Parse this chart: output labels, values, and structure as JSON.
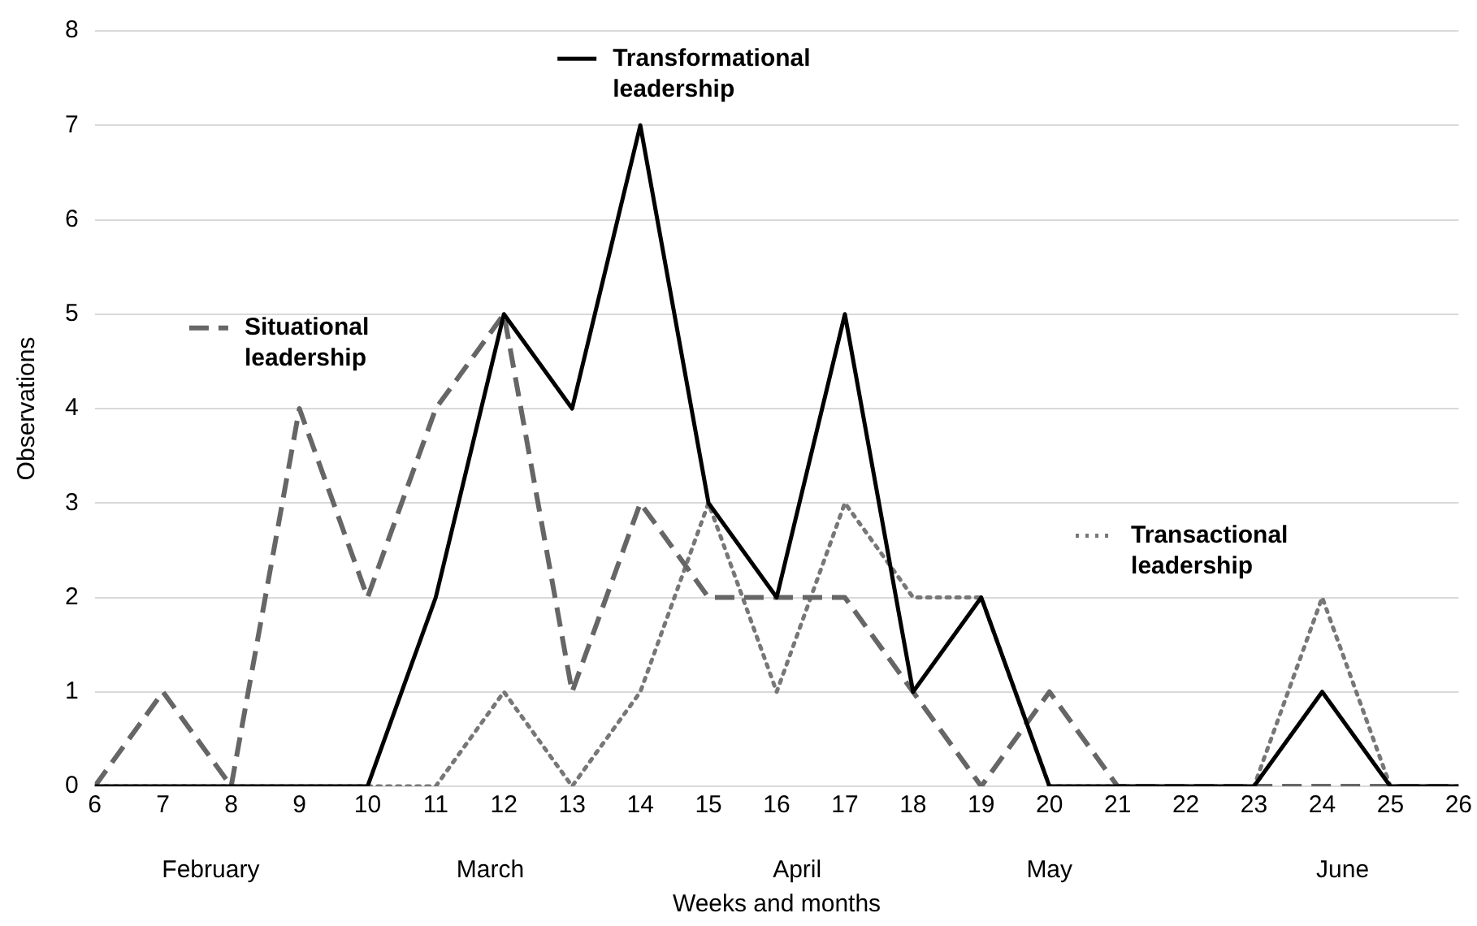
{
  "chart_data": {
    "type": "line",
    "xlabel": "Weeks and months",
    "ylabel": "Observations",
    "x": [
      6,
      7,
      8,
      9,
      10,
      11,
      12,
      13,
      14,
      15,
      16,
      17,
      18,
      19,
      20,
      21,
      22,
      23,
      24,
      25,
      26
    ],
    "xlim": [
      6,
      26
    ],
    "xticks": [
      6,
      7,
      8,
      9,
      10,
      11,
      12,
      13,
      14,
      15,
      16,
      17,
      18,
      19,
      20,
      21,
      22,
      23,
      24,
      25,
      26
    ],
    "ylim": [
      0,
      8
    ],
    "yticks": [
      0,
      1,
      2,
      3,
      4,
      5,
      6,
      7,
      8
    ],
    "grid": "y",
    "marker": "none",
    "series": [
      {
        "name": "Transformational leadership",
        "color": "#000000",
        "line_style": "solid",
        "values": [
          0,
          0,
          0,
          0,
          0,
          2,
          5,
          4,
          7,
          3,
          2,
          5,
          1,
          2,
          0,
          0,
          0,
          0,
          1,
          0,
          0
        ]
      },
      {
        "name": "Situational leadership",
        "color": "#666666",
        "line_style": "dashed",
        "values": [
          0,
          1,
          0,
          4,
          2,
          4,
          5,
          1,
          3,
          2,
          2,
          2,
          1,
          0,
          1,
          0,
          0,
          0,
          0,
          0,
          0
        ]
      },
      {
        "name": "Transactional leadership",
        "color": "#777777",
        "line_style": "dotted",
        "values": [
          0,
          0,
          0,
          0,
          0,
          0,
          1,
          0,
          1,
          3,
          1,
          3,
          2,
          2,
          0,
          0,
          0,
          0,
          2,
          0,
          0
        ]
      }
    ],
    "legend": "top",
    "annotations": [
      "February",
      "March",
      "April",
      "May",
      "June"
    ]
  }
}
